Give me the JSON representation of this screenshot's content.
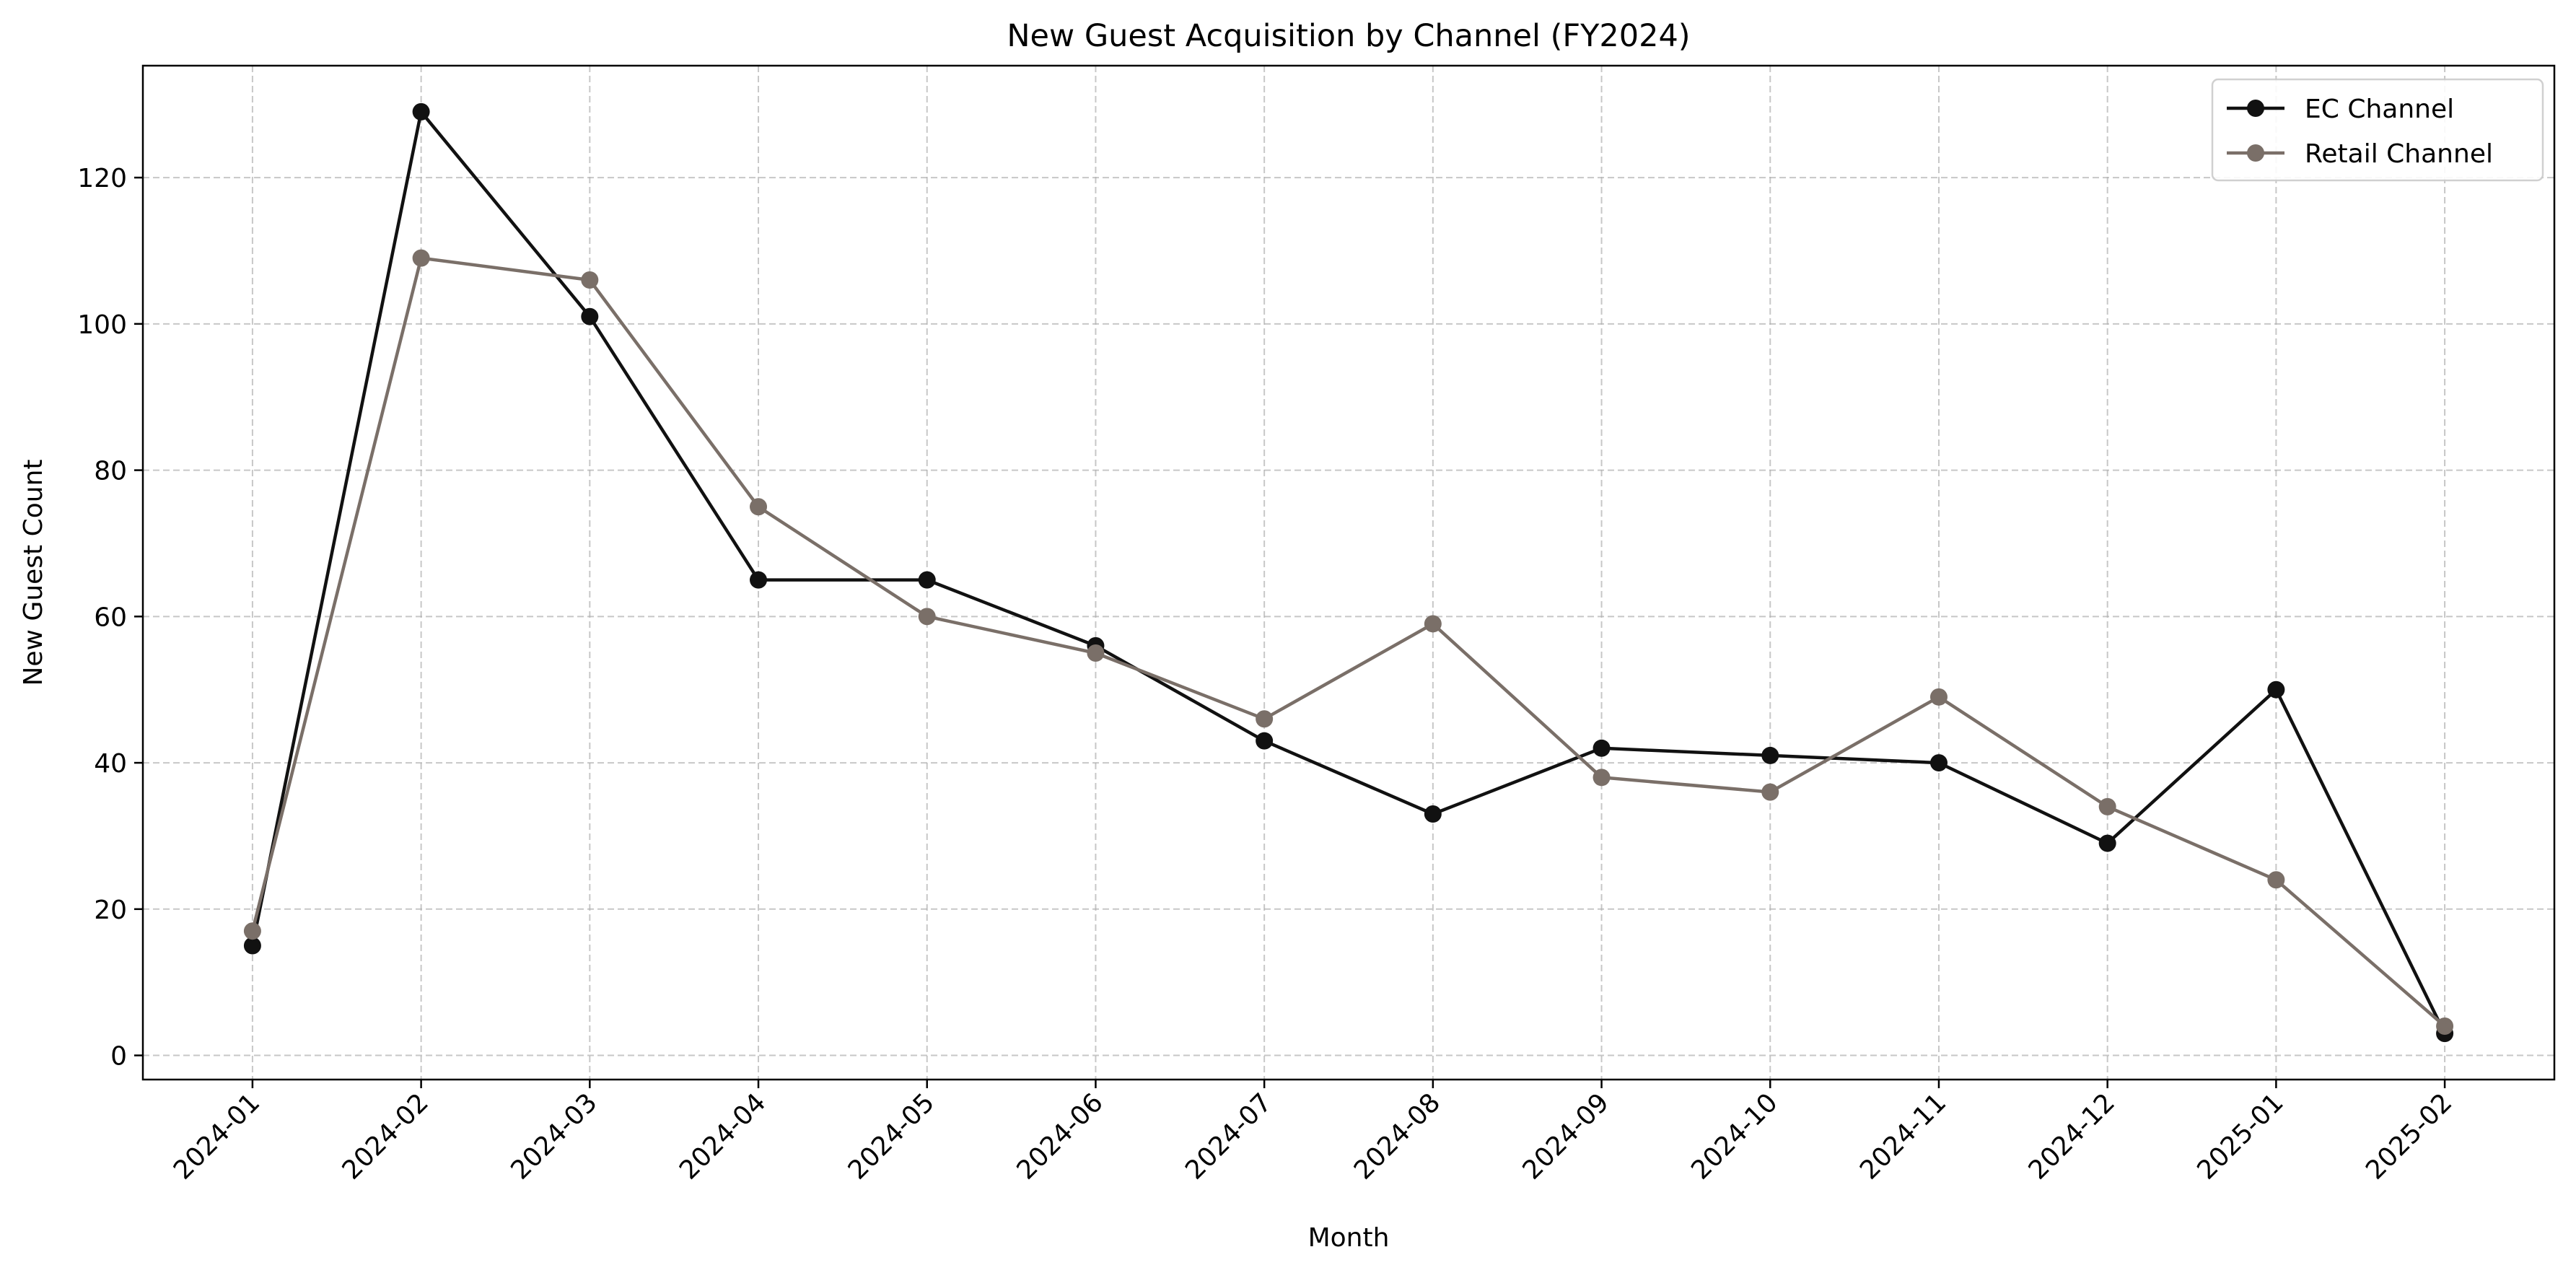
{
  "chart_data": {
    "type": "line",
    "title": "New Guest Acquisition by Channel (FY2024)",
    "xlabel": "Month",
    "ylabel": "New Guest Count",
    "categories": [
      "2024-01",
      "2024-02",
      "2024-03",
      "2024-04",
      "2024-05",
      "2024-06",
      "2024-07",
      "2024-08",
      "2024-09",
      "2024-10",
      "2024-11",
      "2024-12",
      "2025-01",
      "2025-02"
    ],
    "yticks": [
      0,
      20,
      40,
      60,
      80,
      100,
      120
    ],
    "ylim": [
      -3.3,
      135.3
    ],
    "grid": true,
    "legend_position": "top-right",
    "series": [
      {
        "name": "EC Channel",
        "color": "#111111",
        "values": [
          15,
          129,
          101,
          65,
          65,
          56,
          43,
          33,
          42,
          41,
          40,
          29,
          50,
          3
        ]
      },
      {
        "name": "Retail Channel",
        "color": "#7a6f68",
        "values": [
          17,
          109,
          106,
          75,
          60,
          55,
          46,
          59,
          38,
          36,
          49,
          34,
          24,
          4
        ]
      }
    ]
  }
}
